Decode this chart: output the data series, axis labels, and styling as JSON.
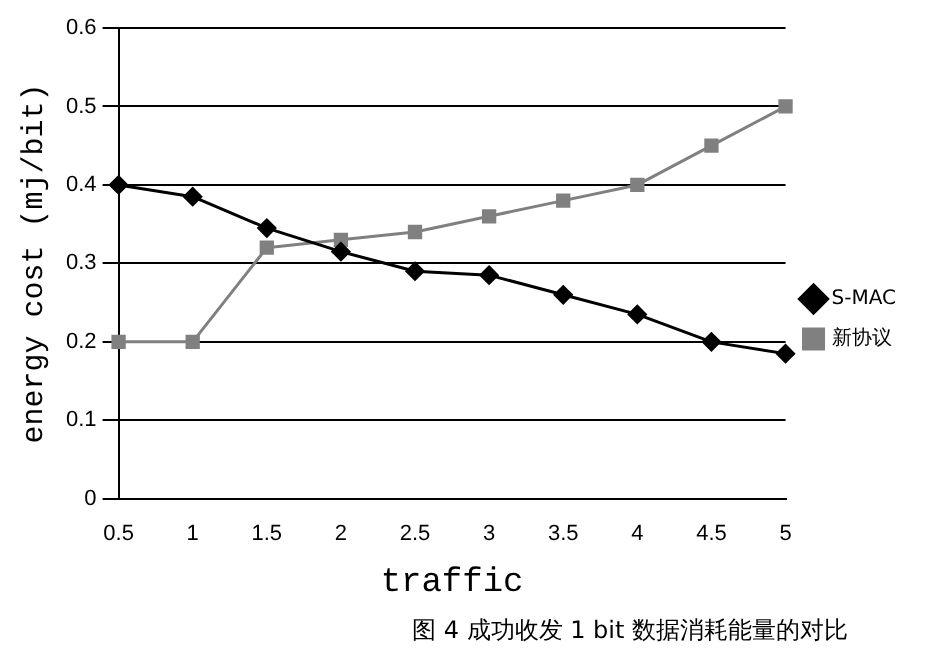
{
  "chart_data": {
    "type": "line",
    "xlabel": "traffic",
    "ylabel": "energy cost (mj/bit)",
    "categories": [
      "0.5",
      "1",
      "1.5",
      "2",
      "2.5",
      "3",
      "3.5",
      "4",
      "4.5",
      "5"
    ],
    "series": [
      {
        "name": "S-MAC",
        "color": "#000000",
        "marker": "diamond",
        "values": [
          0.4,
          0.385,
          0.345,
          0.315,
          0.29,
          0.285,
          0.26,
          0.235,
          0.2,
          0.185
        ]
      },
      {
        "name": "新协议",
        "color": "#808080",
        "marker": "square",
        "values": [
          0.2,
          0.2,
          0.32,
          0.33,
          0.34,
          0.36,
          0.38,
          0.4,
          0.45,
          0.5
        ]
      }
    ],
    "ylim": [
      0,
      0.6
    ],
    "yticks": [
      0,
      0.1,
      0.2,
      0.3,
      0.4,
      0.5,
      0.6
    ],
    "grid": "y",
    "legend": "right",
    "annotations": [
      "图 4 成功收发 1 bit 数据消耗能量的对比"
    ]
  }
}
